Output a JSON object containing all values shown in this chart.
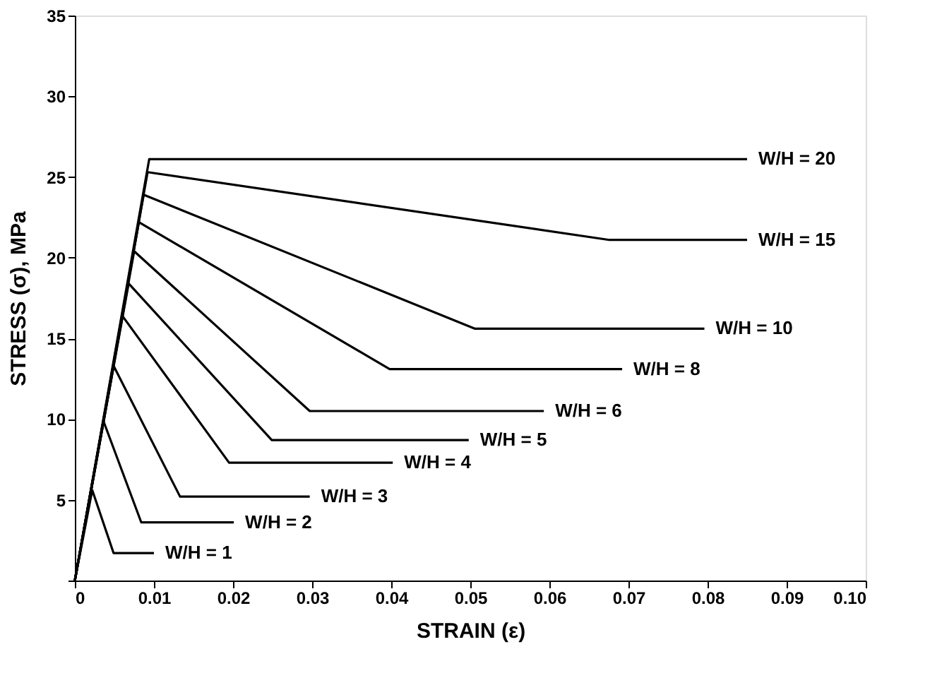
{
  "chart_data": {
    "type": "line",
    "xlabel": "STRAIN (ε)",
    "ylabel": "STRESS (σ), MPa",
    "xlim": [
      0,
      0.1
    ],
    "ylim": [
      0,
      35
    ],
    "xticks": [
      0,
      0.01,
      0.02,
      0.03,
      0.04,
      0.05,
      0.06,
      0.07,
      0.08,
      0.09,
      {
        "value": 0.1,
        "label": "0.10"
      }
    ],
    "yticks": [
      {
        "value": 0,
        "label": null
      },
      5,
      10,
      15,
      20,
      25,
      30,
      35
    ],
    "grid": false,
    "legend": false,
    "marker": "none",
    "line_style": "solid",
    "series": [
      {
        "name": "W/H = 20",
        "color": "#000000",
        "x": [
          0,
          0.0094,
          0.085
        ],
        "values": [
          0,
          26.1,
          26.1
        ]
      },
      {
        "name": "W/H = 15",
        "color": "#000000",
        "x": [
          0,
          0.0092,
          0.0676,
          0.085
        ],
        "values": [
          0,
          25.3,
          21.1,
          21.1
        ]
      },
      {
        "name": "W/H = 10",
        "color": "#000000",
        "x": [
          0,
          0.0087,
          0.0506,
          0.0796
        ],
        "values": [
          0,
          23.9,
          15.6,
          15.6
        ]
      },
      {
        "name": "W/H = 8",
        "color": "#000000",
        "x": [
          0,
          0.0081,
          0.0398,
          0.0692
        ],
        "values": [
          0,
          22.2,
          13.1,
          13.1
        ]
      },
      {
        "name": "W/H = 6",
        "color": "#000000",
        "x": [
          0,
          0.0075,
          0.0297,
          0.0593
        ],
        "values": [
          0,
          20.4,
          10.5,
          10.5
        ]
      },
      {
        "name": "W/H = 5",
        "color": "#000000",
        "x": [
          0,
          0.0068,
          0.0249,
          0.0498
        ],
        "values": [
          0,
          18.4,
          8.7,
          8.7
        ]
      },
      {
        "name": "W/H = 4",
        "color": "#000000",
        "x": [
          0,
          0.006,
          0.0195,
          0.0402
        ],
        "values": [
          0,
          16.4,
          7.3,
          7.3
        ]
      },
      {
        "name": "W/H = 3",
        "color": "#000000",
        "x": [
          0,
          0.0049,
          0.0133,
          0.0297
        ],
        "values": [
          0,
          13.3,
          5.2,
          5.2
        ]
      },
      {
        "name": "W/H = 2",
        "color": "#000000",
        "x": [
          0,
          0.0036,
          0.0084,
          0.0201
        ],
        "values": [
          0,
          9.9,
          3.6,
          3.6
        ]
      },
      {
        "name": "W/H = 1",
        "color": "#000000",
        "x": [
          0,
          0.0022,
          0.0049,
          0.01
        ],
        "values": [
          0,
          5.6,
          1.7,
          1.7
        ]
      }
    ]
  }
}
